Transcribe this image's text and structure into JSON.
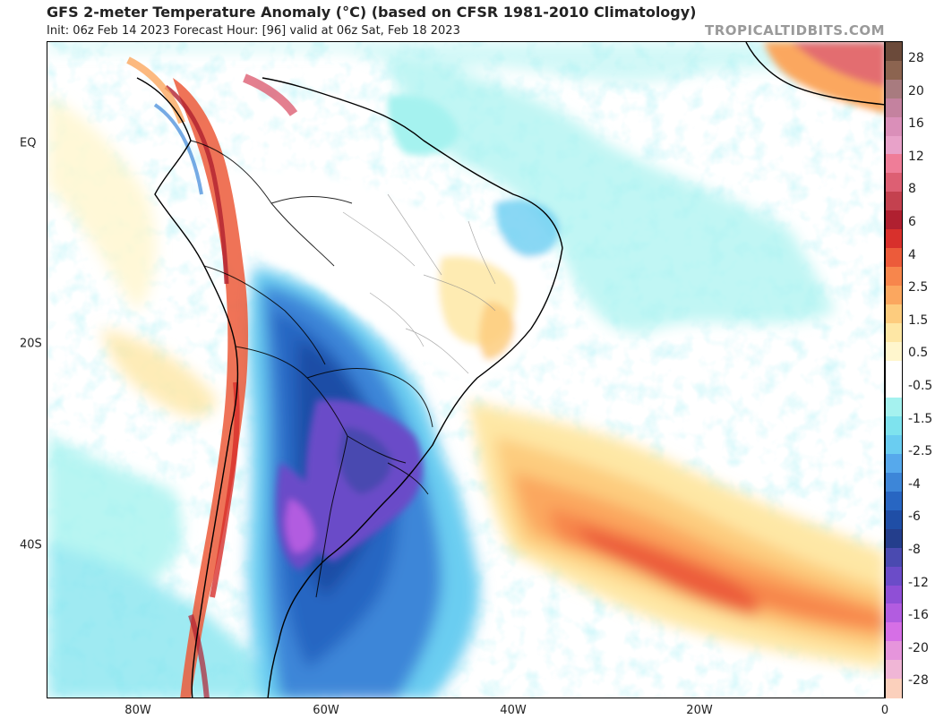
{
  "header": {
    "title": "GFS 2-meter Temperature Anomaly (°C) (based on CFSR 1981-2010 Climatology)",
    "subtitle": "Init: 06z Feb 14 2023   Forecast Hour: [96]   valid at 06z Sat, Feb 18 2023",
    "brand": "TROPICALTIDBITS.COM"
  },
  "map": {
    "latitude_labels": [
      "EQ",
      "20S",
      "40S"
    ],
    "longitude_labels": [
      "80W",
      "60W",
      "40W",
      "20W",
      "0"
    ]
  },
  "colorbar": {
    "labels": [
      "28",
      "20",
      "16",
      "12",
      "8",
      "6",
      "4",
      "2.5",
      "1.5",
      "0.5",
      "-0.5",
      "-1.5",
      "-2.5",
      "-4",
      "-6",
      "-8",
      "-12",
      "-16",
      "-20",
      "-28"
    ],
    "colors": [
      "#6b4a3a",
      "#8c6450",
      "#a87b7f",
      "#c4829f",
      "#da8fb9",
      "#e8a2c9",
      "#ef7d98",
      "#dd5f73",
      "#c4414f",
      "#b02030",
      "#d8302c",
      "#ec5b3a",
      "#f7864c",
      "#fba75f",
      "#fdcc7e",
      "#fee7a5",
      "#fff6cd",
      "#ffffff",
      "#ffffff",
      "#a5f2ef",
      "#7ee3ee",
      "#6acdf1",
      "#56a9ec",
      "#3d86d8",
      "#2866c2",
      "#1f4ea6",
      "#243e8c",
      "#4a4ab0",
      "#6b4cc8",
      "#8f4fd6",
      "#b25ce0",
      "#d66fe6",
      "#e695dc",
      "#f0b6d6",
      "#fbd0bc"
    ]
  }
}
